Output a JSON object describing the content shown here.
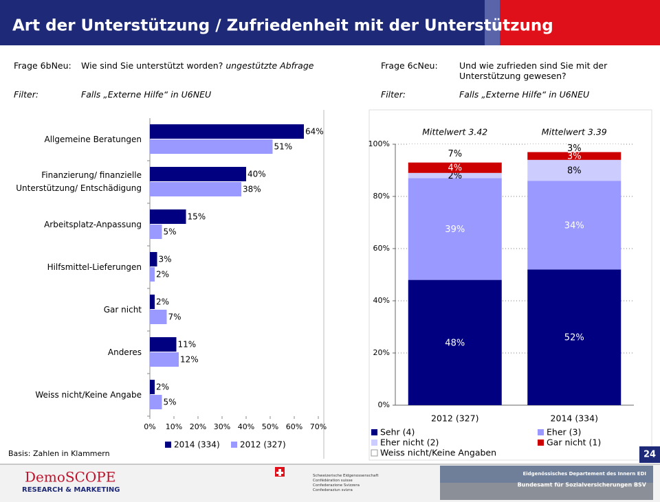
{
  "header": {
    "title": "Art der Unterstützung / Zufriedenheit mit der Unterstützung"
  },
  "questions": [
    {
      "label": "Frage 6bNeu:",
      "text": "Wie sind Sie unterstützt worden?",
      "note": "ungestützte Abfrage",
      "filter_label": "Filter:",
      "filter": "Falls „Externe Hilfe“ in U6NEU"
    },
    {
      "label": "Frage 6cNeu:",
      "text": "Und wie zufrieden sind Sie mit der Unterstützung gewesen?",
      "filter_label": "Filter:",
      "filter": "Falls „Externe Hilfe“ in U6NEU"
    }
  ],
  "chart_data": [
    {
      "type": "hbar",
      "categories": [
        "Allgemeine Beratungen",
        "Finanzierung/ finanzielle\nUnterstützung/ Entschädigung",
        "Arbeitsplatz-Anpassung",
        "Hilfsmittel-Lieferungen",
        "Gar nicht",
        "Anderes",
        "Weiss nicht/Keine Angabe"
      ],
      "series": [
        {
          "name": "2014 (334)",
          "color": "#000080",
          "values": [
            64,
            40,
            15,
            3,
            2,
            11,
            2
          ],
          "value_labels": [
            "64%",
            "40%",
            "15%",
            "3%",
            "2%",
            "11%",
            "2%"
          ]
        },
        {
          "name": "2012 (327)",
          "color": "#9999ff",
          "values": [
            51,
            38,
            5,
            2,
            7,
            12,
            5
          ],
          "value_labels": [
            "51%",
            "38%",
            "5%",
            "2%",
            "7%",
            "12%",
            "5%"
          ]
        }
      ],
      "xlim": [
        0,
        70
      ],
      "xticks": [
        {
          "value": 0,
          "label": "0%"
        },
        {
          "value": 10,
          "label": "10%"
        },
        {
          "value": 20,
          "label": "20%"
        },
        {
          "value": 30,
          "label": "30%"
        },
        {
          "value": 40,
          "label": "40%"
        },
        {
          "value": 50,
          "label": "50%"
        },
        {
          "value": 60,
          "label": "60%"
        },
        {
          "value": 70,
          "label": "70%"
        }
      ]
    },
    {
      "type": "stacked",
      "categories": [
        "2012 (327)",
        "2014 (334)"
      ],
      "annotations": [
        "Mittelwert 3.42",
        "Mittelwert 3.39"
      ],
      "series": [
        {
          "name": "Sehr (4)",
          "color": "#000080",
          "label_color": "#ffffff",
          "values": [
            48,
            52
          ],
          "value_labels": [
            "48%",
            "52%"
          ]
        },
        {
          "name": "Eher (3)",
          "color": "#9999ff",
          "label_color": "#ffffff",
          "values": [
            39,
            34
          ],
          "value_labels": [
            "39%",
            "34%"
          ]
        },
        {
          "name": "Eher nicht (2)",
          "color": "#ccccff",
          "label_color": "#000000",
          "values": [
            2,
            8
          ],
          "value_labels": [
            "2%",
            "8%"
          ]
        },
        {
          "name": "Gar nicht (1)",
          "color": "#cc0000",
          "label_color": "#ffffff",
          "values": [
            4,
            3
          ],
          "value_labels": [
            "4%",
            "3%"
          ]
        },
        {
          "name": "Weiss nicht/Keine Angaben",
          "color": "#ffffff",
          "label_color": "#000000",
          "values": [
            7,
            3
          ],
          "value_labels": [
            "7%",
            "3%"
          ]
        }
      ],
      "ylim": [
        0,
        100
      ],
      "yticks": [
        {
          "value": 0,
          "label": "0%"
        },
        {
          "value": 20,
          "label": "20%"
        },
        {
          "value": 40,
          "label": "40%"
        },
        {
          "value": 60,
          "label": "60%"
        },
        {
          "value": 80,
          "label": "80%"
        },
        {
          "value": 100,
          "label": "100%"
        }
      ],
      "grid": true
    }
  ],
  "footer": {
    "basis": "Basis: Zahlen in Klammern",
    "page": "24",
    "logo": "DemoSCOPE",
    "logo_sub": "RESEARCH & MARKETING",
    "swiss": [
      "Schweizerische Eidgenossenschaft",
      "Confédération suisse",
      "Confederazione Svizzera",
      "Confederaziun svizra"
    ],
    "dept": "Eidgenössisches Departement des Innern EDI",
    "office": "Bundesamt für Sozialversicherungen BSV"
  }
}
